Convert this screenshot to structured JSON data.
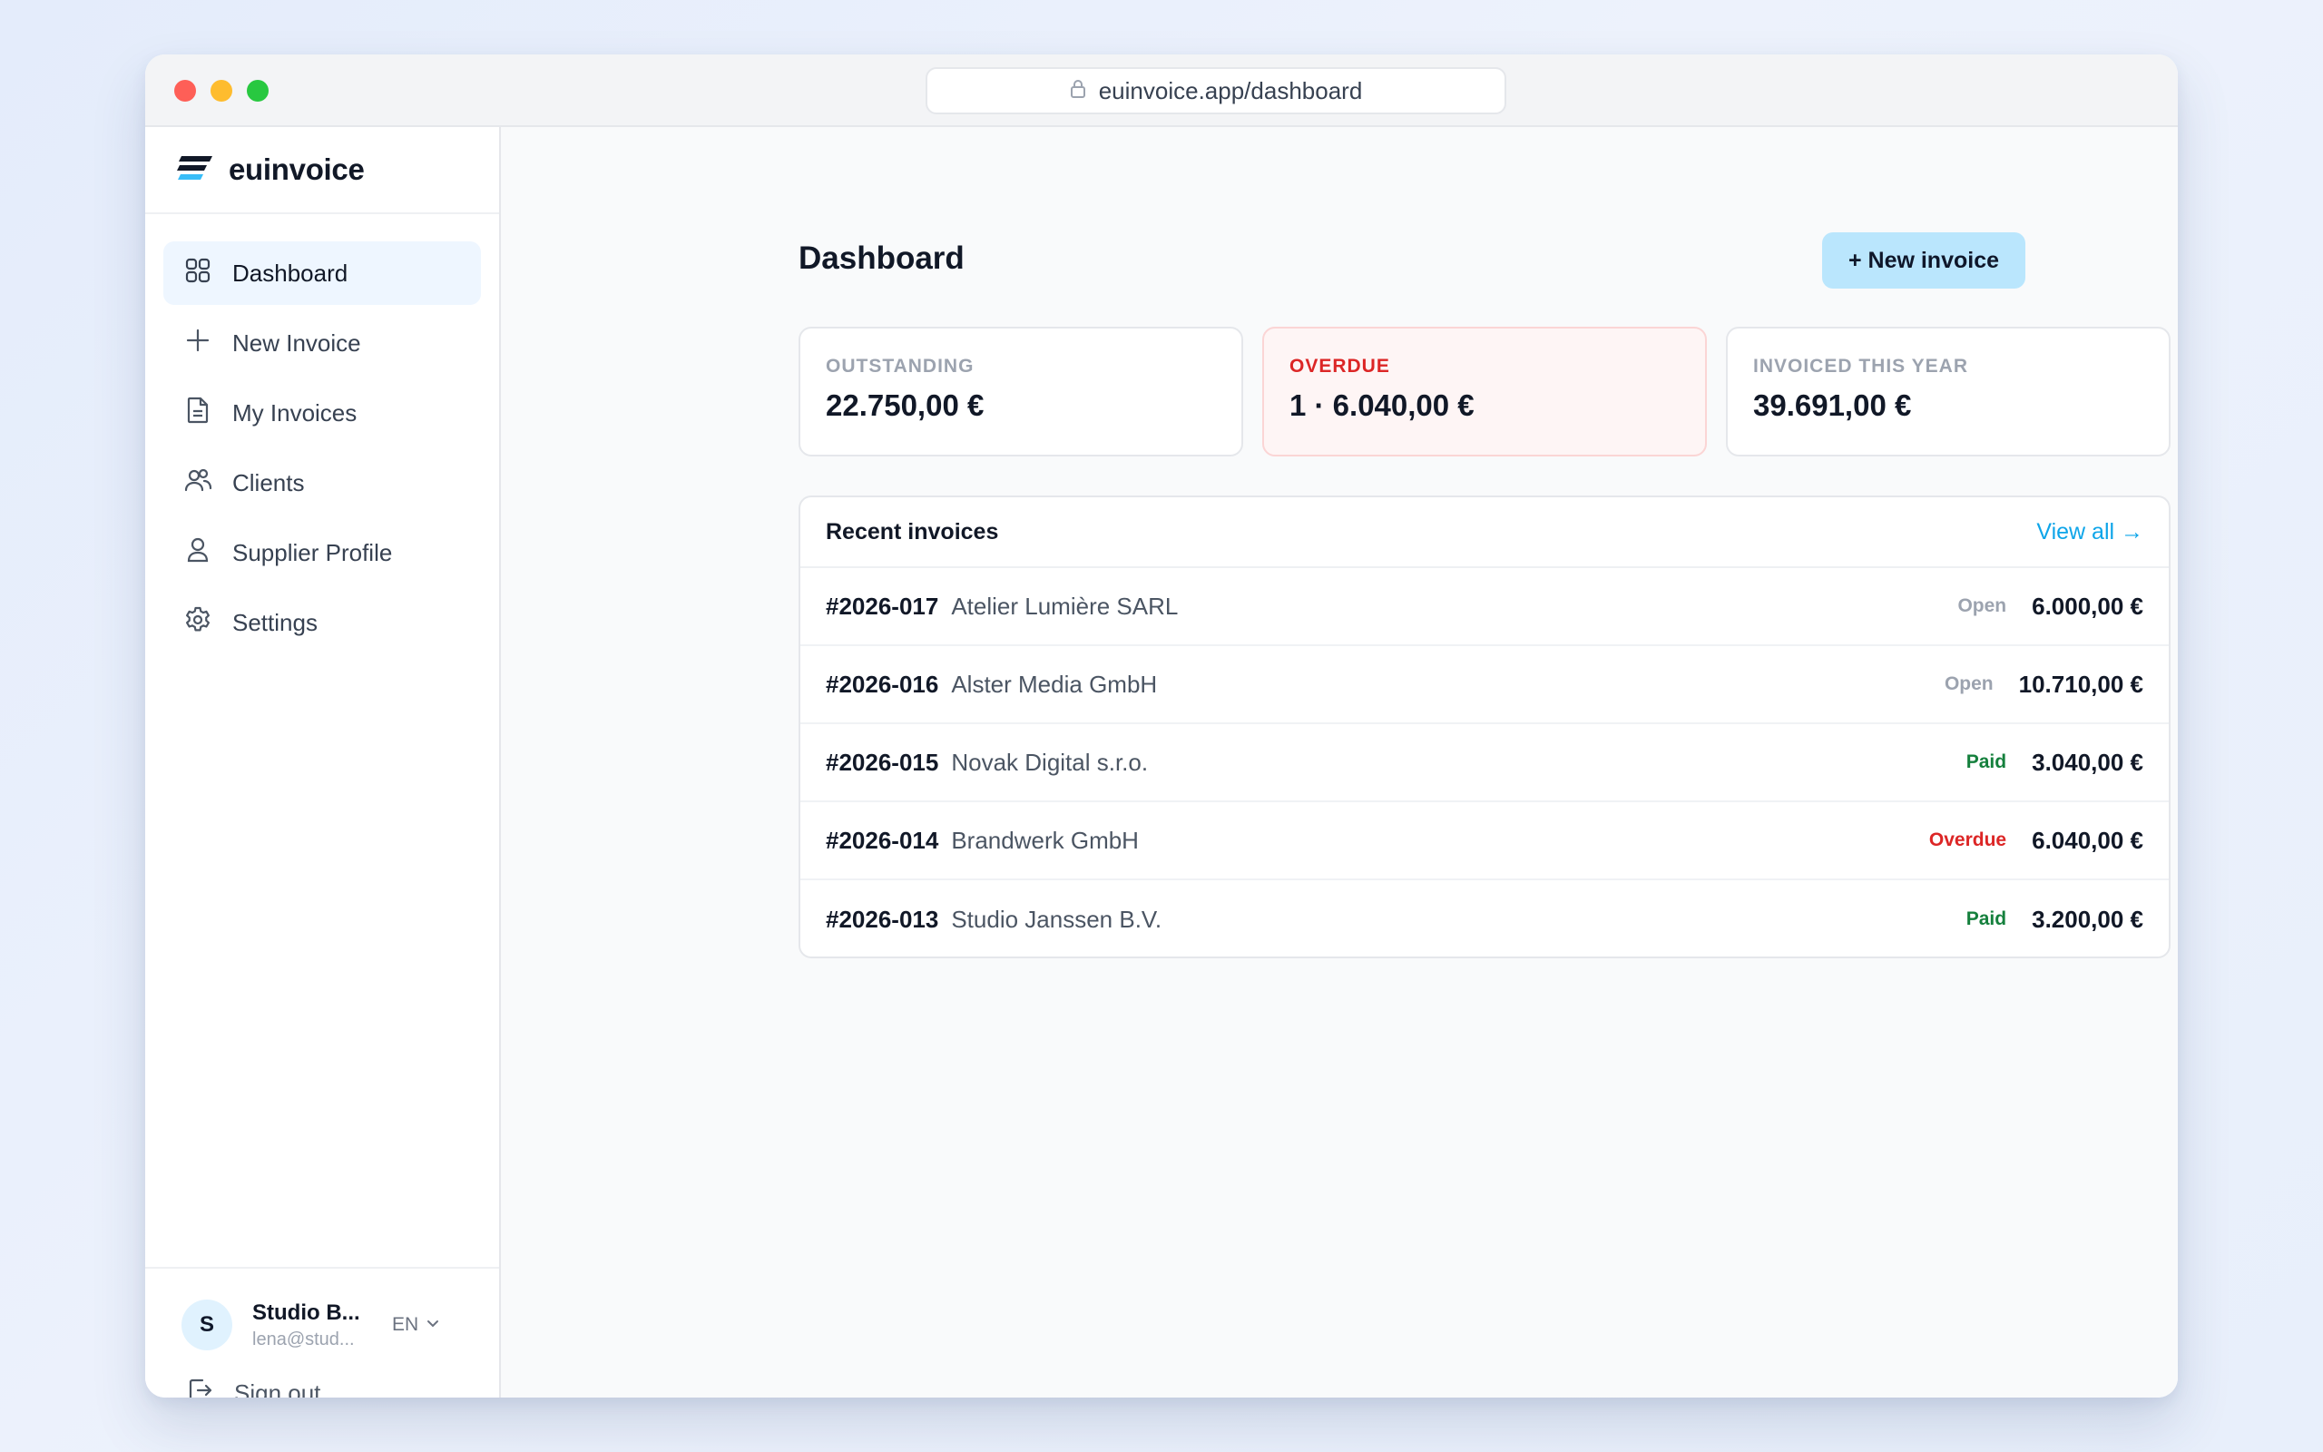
{
  "browser": {
    "url": "euinvoice.app/dashboard"
  },
  "brand": {
    "name": "euinvoice"
  },
  "sidebar": {
    "items": [
      {
        "label": "Dashboard",
        "icon": "grid-icon",
        "active": true
      },
      {
        "label": "New Invoice",
        "icon": "plus-icon"
      },
      {
        "label": "My Invoices",
        "icon": "document-icon"
      },
      {
        "label": "Clients",
        "icon": "users-icon"
      },
      {
        "label": "Supplier Profile",
        "icon": "user-icon"
      },
      {
        "label": "Settings",
        "icon": "gear-icon"
      }
    ],
    "user": {
      "initial": "S",
      "name": "Studio B...",
      "email": "lena@stud...",
      "language": "EN"
    },
    "signout_label": "Sign out"
  },
  "main": {
    "title": "Dashboard",
    "new_invoice_label": "+ New invoice",
    "stats": [
      {
        "label": "OUTSTANDING",
        "value": "22.750,00 €"
      },
      {
        "label": "OVERDUE",
        "value": "1 · 6.040,00 €"
      },
      {
        "label": "INVOICED THIS YEAR",
        "value": "39.691,00 €"
      }
    ],
    "recent": {
      "title": "Recent invoices",
      "view_all": "View all →",
      "rows": [
        {
          "number": "#2026-017",
          "client": "Atelier Lumière SARL",
          "status": "Open",
          "amount": "6.000,00 €"
        },
        {
          "number": "#2026-016",
          "client": "Alster Media GmbH",
          "status": "Open",
          "amount": "10.710,00 €"
        },
        {
          "number": "#2026-015",
          "client": "Novak Digital s.r.o.",
          "status": "Paid",
          "amount": "3.040,00 €"
        },
        {
          "number": "#2026-014",
          "client": "Brandwerk GmbH",
          "status": "Overdue",
          "amount": "6.040,00 €"
        },
        {
          "number": "#2026-013",
          "client": "Studio Janssen B.V.",
          "status": "Paid",
          "amount": "3.200,00 €"
        }
      ]
    }
  },
  "colors": {
    "accent": "#0ea5e9",
    "button_bg": "#bae6fd",
    "overdue": "#dc2626",
    "paid": "#15803d",
    "open": "#9ca3af"
  }
}
